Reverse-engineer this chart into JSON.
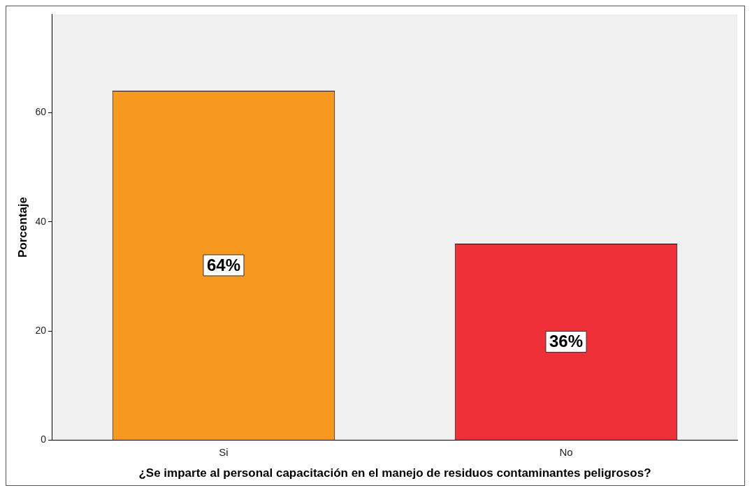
{
  "chart_data": {
    "type": "bar",
    "xlabel": "¿Se imparte al personal capacitación en el manejo de residuos contaminantes peligrosos?",
    "ylabel": "Porcentaje",
    "categories": [
      "Si",
      "No"
    ],
    "values": [
      64,
      36
    ],
    "colors": [
      "#f7991f",
      "#ef3038"
    ],
    "value_labels": [
      "64%",
      "36%"
    ],
    "ylim": [
      0,
      78
    ],
    "yticks": [
      0,
      20,
      40,
      60
    ],
    "grid": false,
    "legend": false
  }
}
